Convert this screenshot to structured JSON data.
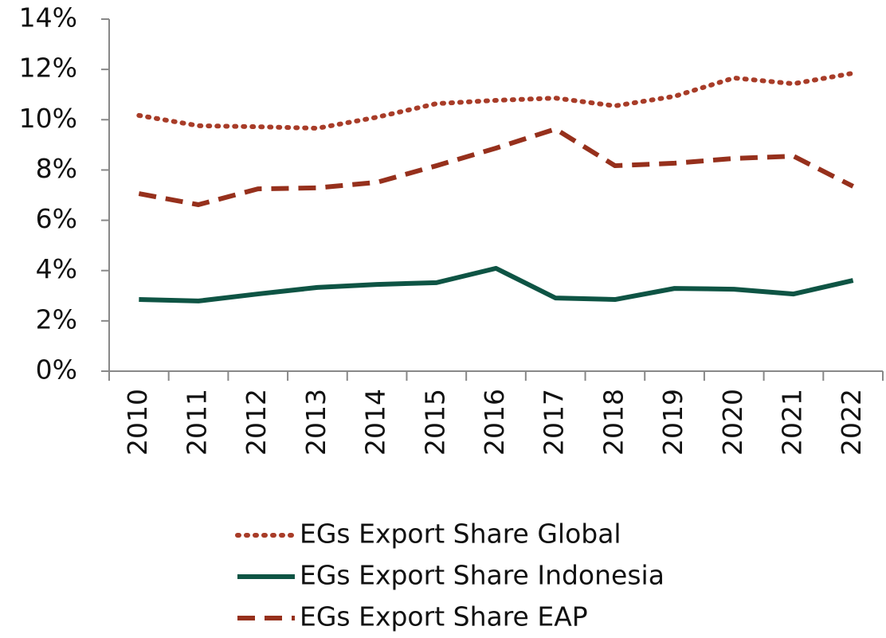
{
  "chart_data": {
    "type": "line",
    "categories": [
      "2010",
      "2011",
      "2012",
      "2013",
      "2014",
      "2015",
      "2016",
      "2017",
      "2018",
      "2019",
      "2020",
      "2021",
      "2022"
    ],
    "series": [
      {
        "name": "EGs Export Share Global",
        "color": "#a83c28",
        "dash": "dotted",
        "values": [
          10.17,
          9.76,
          9.72,
          9.66,
          10.1,
          10.64,
          10.77,
          10.86,
          10.55,
          10.93,
          11.66,
          11.43,
          11.85
        ]
      },
      {
        "name": "EGs Export Share Indonesia",
        "color": "#0e5444",
        "dash": "solid",
        "values": [
          2.85,
          2.79,
          3.07,
          3.33,
          3.45,
          3.52,
          4.09,
          2.91,
          2.85,
          3.29,
          3.26,
          3.07,
          3.61
        ]
      },
      {
        "name": "EGs Export Share EAP",
        "color": "#96301c",
        "dash": "dashed",
        "values": [
          7.06,
          6.62,
          7.25,
          7.29,
          7.51,
          8.17,
          8.87,
          9.63,
          8.17,
          8.27,
          8.46,
          8.55,
          7.35
        ]
      }
    ],
    "ylim": [
      0,
      14
    ],
    "yticks": [
      {
        "value": 0,
        "label": "0%"
      },
      {
        "value": 2,
        "label": "2%"
      },
      {
        "value": 4,
        "label": "4%"
      },
      {
        "value": 6,
        "label": "6%"
      },
      {
        "value": 8,
        "label": "8%"
      },
      {
        "value": 10,
        "label": "10%"
      },
      {
        "value": 12,
        "label": "12%"
      },
      {
        "value": 14,
        "label": "14%"
      }
    ],
    "grid": false
  }
}
